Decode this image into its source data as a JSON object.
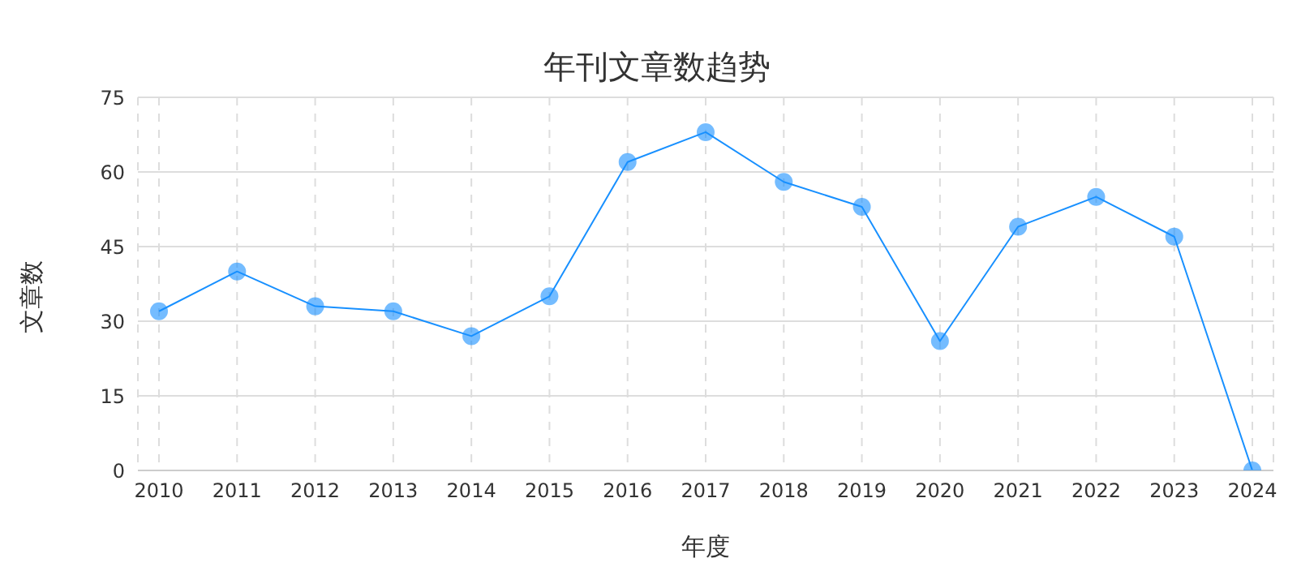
{
  "chart_data": {
    "type": "line",
    "title": "年刊文章数趋势",
    "xlabel": "年度",
    "ylabel": "文章数",
    "categories": [
      "2010",
      "2011",
      "2012",
      "2013",
      "2014",
      "2015",
      "2016",
      "2017",
      "2018",
      "2019",
      "2020",
      "2021",
      "2022",
      "2023",
      "2024"
    ],
    "series": [
      {
        "color": "#1890ff",
        "values": [
          32,
          40,
          33,
          32,
          27,
          35,
          62,
          68,
          58,
          53,
          26,
          49,
          55,
          47,
          0
        ]
      }
    ],
    "ylim": [
      0,
      75
    ],
    "yticks": [
      0,
      15,
      30,
      45,
      60,
      75
    ],
    "grid": true,
    "marker": "circle",
    "line_style": "solid"
  }
}
